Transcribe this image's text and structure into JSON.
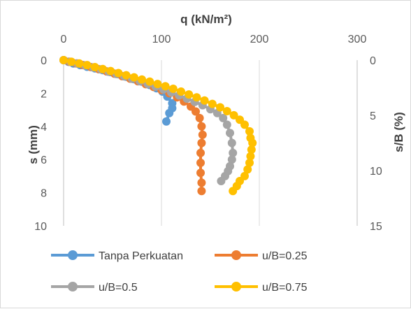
{
  "chart_data": {
    "type": "line",
    "x_axis": {
      "label": "q (kN/m²)",
      "position": "top",
      "range": [
        0,
        300
      ],
      "ticks": [
        "0",
        "100",
        "200",
        "300"
      ]
    },
    "y_axis": {
      "label": "s (mm)",
      "range": [
        0,
        10
      ],
      "reversed": true,
      "ticks": [
        "0",
        "2",
        "4",
        "6",
        "8",
        "10"
      ]
    },
    "y2_axis": {
      "label": "s/B (%)",
      "range": [
        0,
        15
      ],
      "reversed": true,
      "ticks": [
        "0",
        "5",
        "10",
        "15"
      ]
    },
    "grid": {
      "vertical": true,
      "horizontal": false
    },
    "legend_position": "bottom",
    "series": [
      {
        "name": "Tanpa Perkuatan",
        "color": "#5B9BD5",
        "points": [
          [
            0,
            0
          ],
          [
            5,
            0.1
          ],
          [
            10,
            0.2
          ],
          [
            17,
            0.3
          ],
          [
            24,
            0.4
          ],
          [
            32,
            0.5
          ],
          [
            40,
            0.6
          ],
          [
            48,
            0.72
          ],
          [
            56,
            0.85
          ],
          [
            64,
            1.0
          ],
          [
            72,
            1.15
          ],
          [
            80,
            1.3
          ],
          [
            88,
            1.5
          ],
          [
            95,
            1.7
          ],
          [
            101,
            1.9
          ],
          [
            106,
            2.2
          ],
          [
            111,
            2.6
          ],
          [
            111,
            2.9
          ],
          [
            108,
            3.2
          ],
          [
            105,
            3.7
          ]
        ]
      },
      {
        "name": "u/B=0.25",
        "color": "#ED7D31",
        "points": [
          [
            0,
            0
          ],
          [
            6,
            0.1
          ],
          [
            13,
            0.2
          ],
          [
            20,
            0.3
          ],
          [
            28,
            0.42
          ],
          [
            36,
            0.55
          ],
          [
            44,
            0.68
          ],
          [
            52,
            0.82
          ],
          [
            60,
            0.97
          ],
          [
            68,
            1.12
          ],
          [
            76,
            1.28
          ],
          [
            84,
            1.45
          ],
          [
            92,
            1.62
          ],
          [
            100,
            1.8
          ],
          [
            108,
            2.0
          ],
          [
            116,
            2.25
          ],
          [
            123,
            2.5
          ],
          [
            130,
            2.8
          ],
          [
            135,
            3.1
          ],
          [
            139,
            3.5
          ],
          [
            141,
            4.0
          ],
          [
            142,
            4.5
          ],
          [
            141,
            5.0
          ],
          [
            140,
            5.6
          ],
          [
            140,
            6.2
          ],
          [
            140,
            6.8
          ],
          [
            141,
            7.4
          ],
          [
            141,
            7.9
          ]
        ]
      },
      {
        "name": "u/B=0.5",
        "color": "#A5A5A5",
        "points": [
          [
            0,
            0
          ],
          [
            7,
            0.1
          ],
          [
            14,
            0.2
          ],
          [
            22,
            0.32
          ],
          [
            30,
            0.44
          ],
          [
            38,
            0.56
          ],
          [
            46,
            0.7
          ],
          [
            54,
            0.84
          ],
          [
            62,
            0.98
          ],
          [
            70,
            1.13
          ],
          [
            78,
            1.28
          ],
          [
            86,
            1.44
          ],
          [
            94,
            1.6
          ],
          [
            102,
            1.77
          ],
          [
            110,
            1.95
          ],
          [
            118,
            2.13
          ],
          [
            126,
            2.32
          ],
          [
            134,
            2.52
          ],
          [
            142,
            2.72
          ],
          [
            150,
            2.96
          ],
          [
            157,
            3.2
          ],
          [
            163,
            3.5
          ],
          [
            167,
            3.9
          ],
          [
            170,
            4.4
          ],
          [
            172,
            5.0
          ],
          [
            173,
            5.6
          ],
          [
            172,
            6.0
          ],
          [
            170,
            6.4
          ],
          [
            168,
            6.7
          ],
          [
            165,
            7.0
          ],
          [
            161,
            7.3
          ]
        ]
      },
      {
        "name": "u/B=0.75",
        "color": "#FFC000",
        "points": [
          [
            0,
            0
          ],
          [
            8,
            0.1
          ],
          [
            16,
            0.2
          ],
          [
            24,
            0.3
          ],
          [
            32,
            0.42
          ],
          [
            40,
            0.54
          ],
          [
            48,
            0.66
          ],
          [
            56,
            0.78
          ],
          [
            64,
            0.91
          ],
          [
            72,
            1.04
          ],
          [
            80,
            1.17
          ],
          [
            88,
            1.3
          ],
          [
            96,
            1.44
          ],
          [
            104,
            1.58
          ],
          [
            112,
            1.73
          ],
          [
            120,
            1.9
          ],
          [
            128,
            2.07
          ],
          [
            136,
            2.25
          ],
          [
            144,
            2.44
          ],
          [
            152,
            2.64
          ],
          [
            160,
            2.85
          ],
          [
            167,
            3.08
          ],
          [
            174,
            3.33
          ],
          [
            180,
            3.6
          ],
          [
            185,
            3.9
          ],
          [
            190,
            4.3
          ],
          [
            191,
            4.7
          ],
          [
            193,
            5.0
          ],
          [
            192,
            5.4
          ],
          [
            191,
            5.8
          ],
          [
            190,
            6.2
          ],
          [
            188,
            6.6
          ],
          [
            185,
            7.0
          ],
          [
            180,
            7.3
          ],
          [
            177,
            7.6
          ],
          [
            173,
            7.9
          ]
        ]
      }
    ]
  }
}
